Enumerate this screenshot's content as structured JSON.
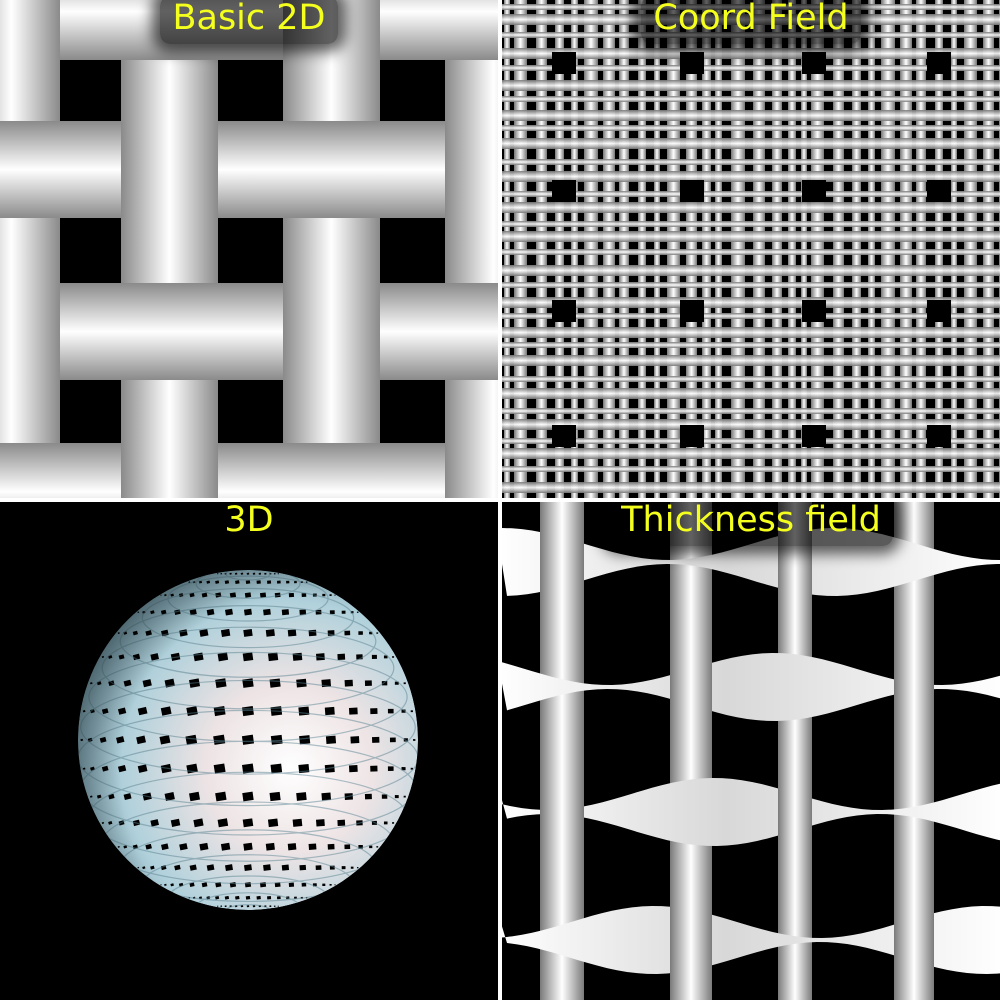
{
  "panels": [
    {
      "title": "Basic 2D"
    },
    {
      "title": "Coord Field"
    },
    {
      "title": "3D"
    },
    {
      "title": "Thickness field"
    }
  ],
  "colors": {
    "title_text": "#f5ff1e",
    "background": "#000000",
    "divider": "#ffffff",
    "sphere_tint": "#9fd6e6"
  }
}
